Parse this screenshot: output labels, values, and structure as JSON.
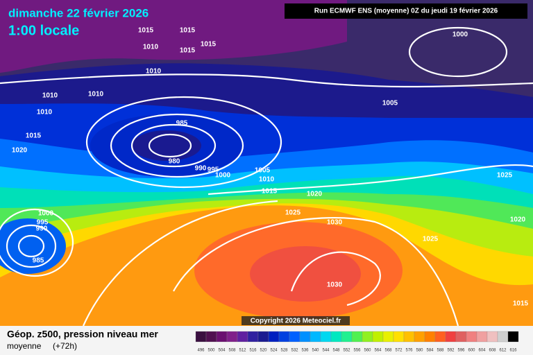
{
  "header": {
    "title": "dimanche 22 février 2026",
    "time": "1:00 locale",
    "run": "Run ECMWF ENS (moyenne) 0Z du jeudi 19 février 2026"
  },
  "copyright": "Copyright 2026 Meteociel.fr",
  "legend": {
    "title": "Géop. z500, pression niveau mer",
    "subtitle": "moyenne",
    "lead": "(+72h)",
    "scale": [
      496,
      500,
      504,
      508,
      512,
      516,
      520,
      524,
      528,
      532,
      536,
      540,
      544,
      548,
      552,
      556,
      560,
      564,
      568,
      572,
      576,
      580,
      584,
      588,
      592,
      596,
      600,
      604,
      608,
      612,
      616
    ],
    "colors": [
      "#3a1040",
      "#501050",
      "#6a1070",
      "#80208a",
      "#6020a0",
      "#3020a0",
      "#1a1a90",
      "#0020c0",
      "#0040e0",
      "#0060ff",
      "#0090ff",
      "#00b8ff",
      "#00d8f0",
      "#00e8c0",
      "#20f090",
      "#50f050",
      "#90f020",
      "#c0f000",
      "#e8f000",
      "#ffe000",
      "#ffc000",
      "#ffa000",
      "#ff8000",
      "#ff6020",
      "#f04040",
      "#e06060",
      "#f08080",
      "#f0a0a0",
      "#f0c0c0",
      "#d0d0d0",
      "#000000"
    ]
  },
  "isobar_labels": [
    1015,
    1015,
    1010,
    1015,
    1015,
    1010,
    1010,
    1010,
    1010,
    1015,
    1020,
    985,
    980,
    990,
    995,
    1000,
    1005,
    1010,
    1015,
    1020,
    1025,
    1030,
    1000,
    995,
    990,
    985,
    1000,
    1005,
    1025,
    1020,
    1025,
    1030,
    1015
  ]
}
